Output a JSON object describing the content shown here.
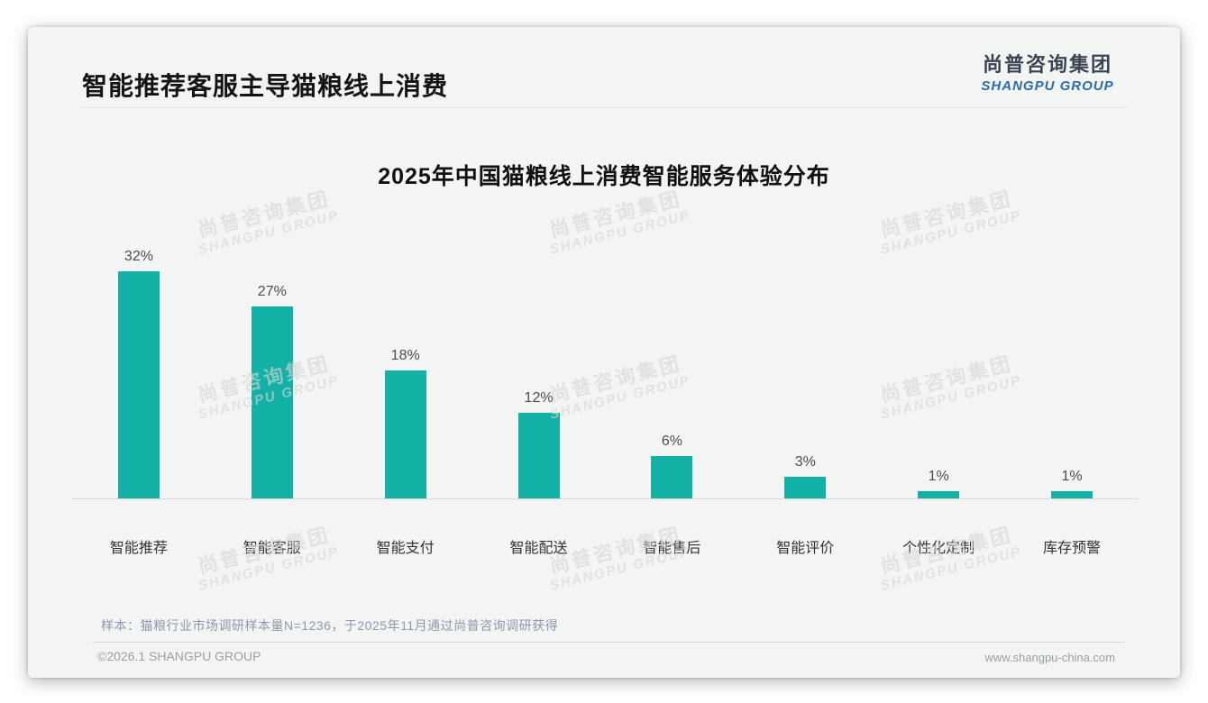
{
  "page": {
    "title": "智能推荐客服主导猫粮线上消费",
    "logo": {
      "cn": "尚普咨询集团",
      "en": "SHANGPU GROUP"
    },
    "sample_note": "样本：猫粮行业市场调研样本量N=1236，于2025年11月通过尚普咨询调研获得",
    "footer": {
      "left": "©2026.1 SHANGPU GROUP",
      "right": "www.shangpu-china.com"
    },
    "watermark": {
      "line1": "尚普咨询集团",
      "line2": "SHANGPU GROUP"
    }
  },
  "colors": {
    "bar": "#12b0a5",
    "logo_cn": "#3a4553",
    "logo_en": "#2e6ca6",
    "card_bg": "#f3f4f4"
  },
  "chart_data": {
    "type": "bar",
    "title": "2025年中国猫粮线上消费智能服务体验分布",
    "categories": [
      "智能推荐",
      "智能客服",
      "智能支付",
      "智能配送",
      "智能售后",
      "智能评价",
      "个性化定制",
      "库存预警"
    ],
    "values": [
      32,
      27,
      18,
      12,
      6,
      3,
      1,
      1
    ],
    "unit": "%",
    "value_labels": [
      "32%",
      "27%",
      "18%",
      "12%",
      "6%",
      "3%",
      "1%",
      "1%"
    ],
    "xlabel": "",
    "ylabel": "",
    "ylim": [
      0,
      35
    ],
    "grid": false,
    "legend": false,
    "bar_color": "#12b0a5"
  }
}
